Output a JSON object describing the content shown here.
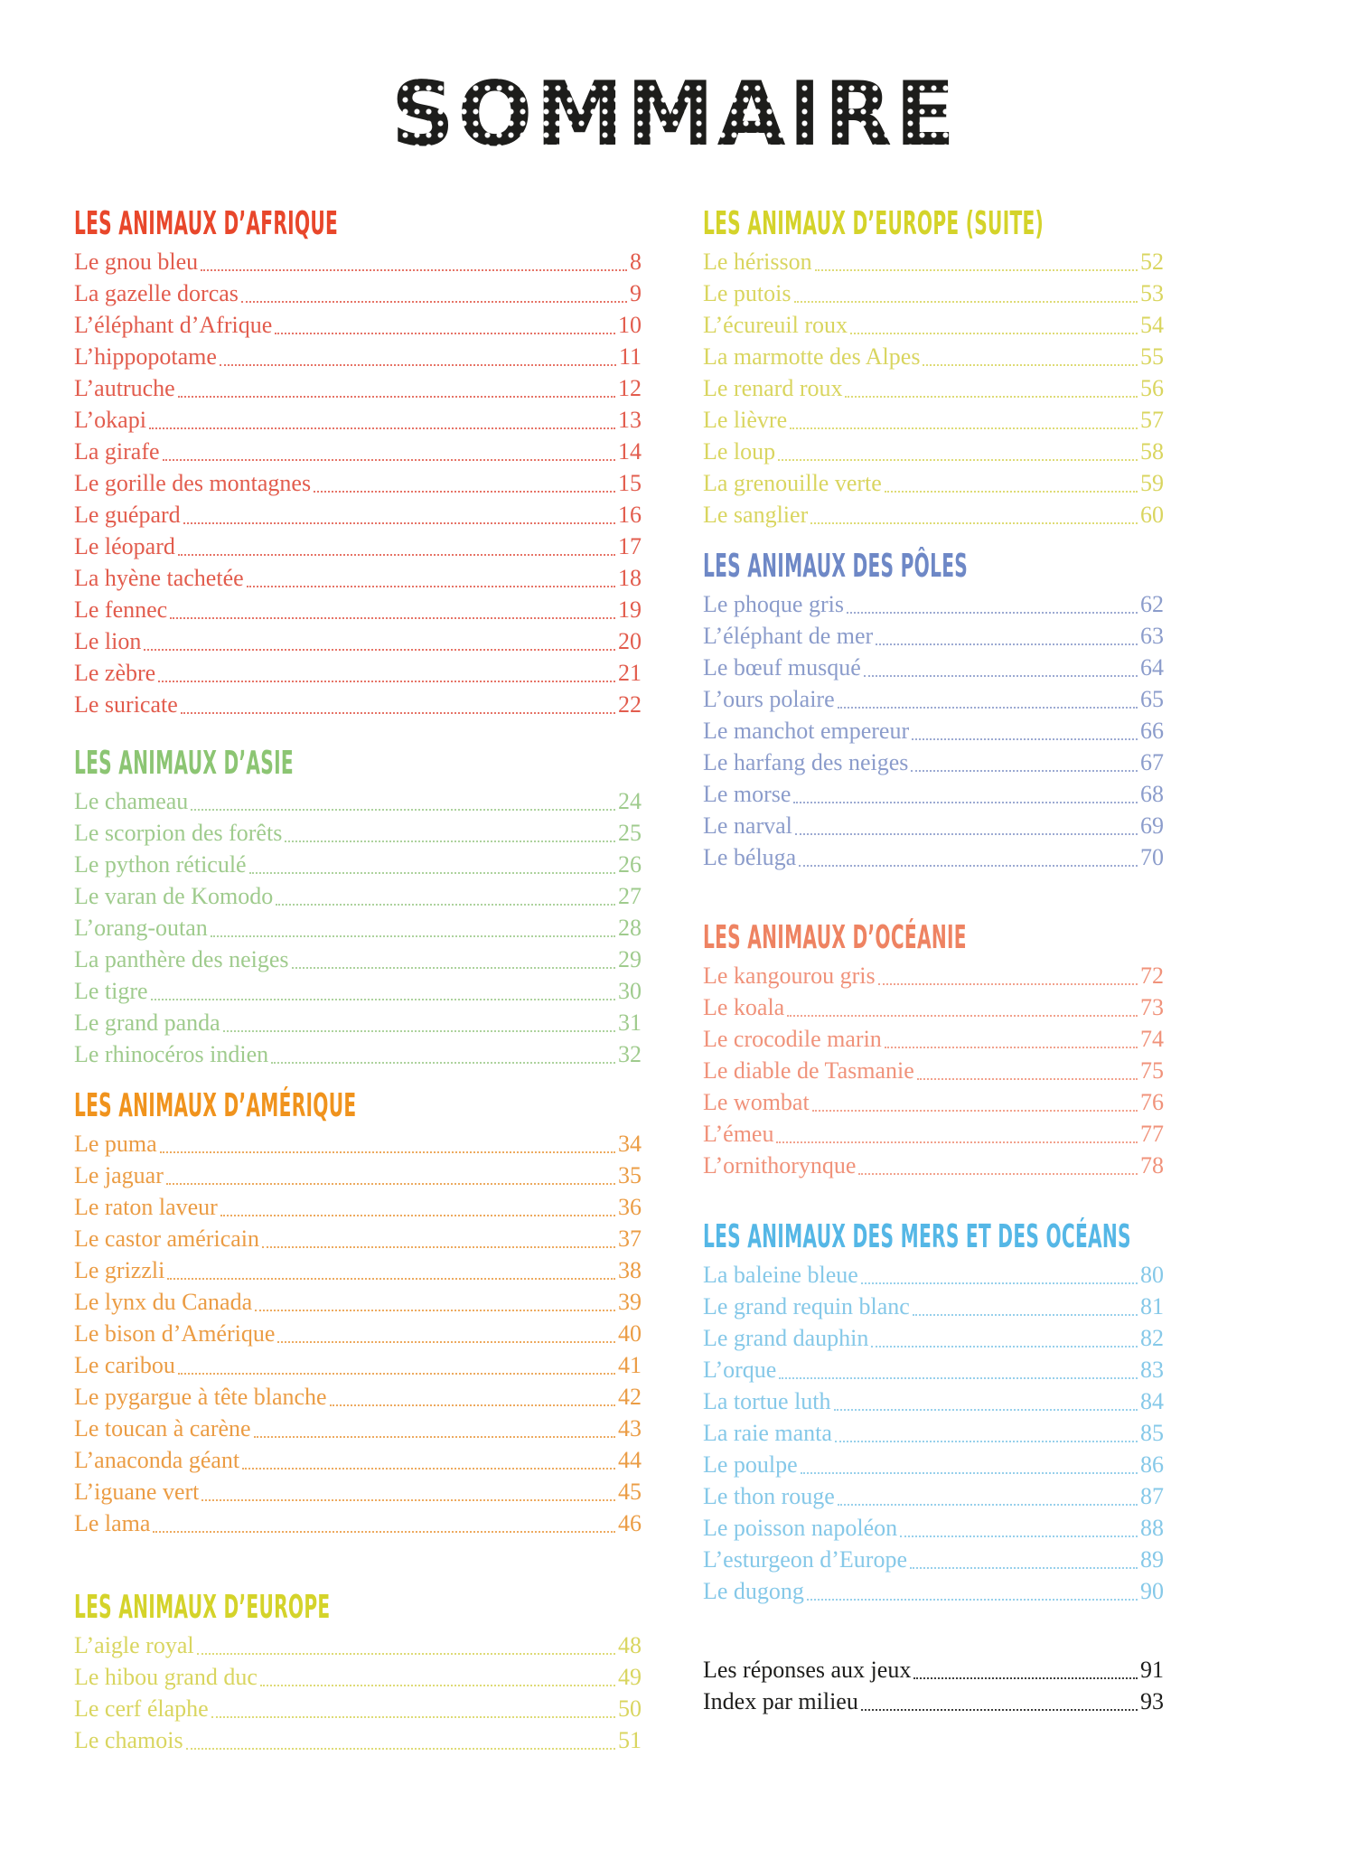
{
  "page": {
    "title": "SOMMAIRE",
    "title_color": "#1d1d1b",
    "background": "#ffffff"
  },
  "columns": [
    {
      "sections": [
        {
          "heading": "LES ANIMAUX D’AFRIQUE",
          "heading_color": "#e8472b",
          "entry_color": "#e25c4d",
          "entries": [
            {
              "label": "Le gnou bleu",
              "page": "8"
            },
            {
              "label": "La gazelle dorcas",
              "page": "9"
            },
            {
              "label": "L’éléphant d’Afrique",
              "page": "10"
            },
            {
              "label": "L’hippopotame",
              "page": "11"
            },
            {
              "label": "L’autruche",
              "page": "12"
            },
            {
              "label": "L’okapi",
              "page": "13"
            },
            {
              "label": "La girafe",
              "page": "14"
            },
            {
              "label": "Le gorille des montagnes",
              "page": "15"
            },
            {
              "label": "Le guépard",
              "page": "16"
            },
            {
              "label": "Le léopard",
              "page": "17"
            },
            {
              "label": "La hyène tachetée",
              "page": "18"
            },
            {
              "label": "Le fennec",
              "page": "19"
            },
            {
              "label": "Le lion",
              "page": "20"
            },
            {
              "label": "Le zèbre",
              "page": "21"
            },
            {
              "label": "Le suricate",
              "page": "22"
            }
          ]
        },
        {
          "heading": "LES ANIMAUX D’ASIE",
          "heading_color": "#8cc573",
          "entry_color": "#9fcb8d",
          "entries": [
            {
              "label": "Le chameau",
              "page": "24"
            },
            {
              "label": "Le scorpion des forêts",
              "page": "25"
            },
            {
              "label": "Le python réticulé",
              "page": "26"
            },
            {
              "label": "Le varan de Komodo",
              "page": "27"
            },
            {
              "label": "L’orang-outan",
              "page": "28"
            },
            {
              "label": "La panthère des neiges",
              "page": "29"
            },
            {
              "label": "Le tigre",
              "page": "30"
            },
            {
              "label": "Le grand panda",
              "page": "31"
            },
            {
              "label": "Le rhinocéros indien",
              "page": "32"
            }
          ]
        },
        {
          "heading": "LES ANIMAUX D’AMÉRIQUE",
          "heading_color": "#f0931d",
          "entry_color": "#eb9c44",
          "entries": [
            {
              "label": "Le puma",
              "page": "34"
            },
            {
              "label": "Le jaguar",
              "page": "35"
            },
            {
              "label": "Le raton laveur",
              "page": "36"
            },
            {
              "label": "Le castor américain",
              "page": "37"
            },
            {
              "label": "Le grizzli",
              "page": "38"
            },
            {
              "label": "Le lynx du Canada",
              "page": "39"
            },
            {
              "label": "Le bison d’Amérique",
              "page": "40"
            },
            {
              "label": "Le caribou",
              "page": "41"
            },
            {
              "label": "Le pygargue à tête blanche",
              "page": "42"
            },
            {
              "label": "Le toucan à carène",
              "page": "43"
            },
            {
              "label": "L’anaconda géant",
              "page": "44"
            },
            {
              "label": "L’iguane vert",
              "page": "45"
            },
            {
              "label": "Le lama",
              "page": "46"
            }
          ]
        },
        {
          "heading": "LES ANIMAUX D’EUROPE",
          "heading_color": "#d4d32a",
          "entry_color": "#d9d55f",
          "entries": [
            {
              "label": "L’aigle royal",
              "page": "48"
            },
            {
              "label": "Le hibou grand duc",
              "page": "49"
            },
            {
              "label": "Le cerf élaphe",
              "page": "50"
            },
            {
              "label": "Le chamois",
              "page": "51"
            }
          ]
        }
      ]
    },
    {
      "sections": [
        {
          "heading": "LES ANIMAUX D’EUROPE (SUITE)",
          "heading_color": "#d4d32a",
          "entry_color": "#d9d55f",
          "entries": [
            {
              "label": "Le hérisson",
              "page": "52"
            },
            {
              "label": "Le putois",
              "page": "53"
            },
            {
              "label": "L’écureuil roux",
              "page": "54"
            },
            {
              "label": "La marmotte des Alpes",
              "page": "55"
            },
            {
              "label": "Le renard roux",
              "page": "56"
            },
            {
              "label": "Le lièvre",
              "page": "57"
            },
            {
              "label": "Le loup",
              "page": "58"
            },
            {
              "label": "La grenouille verte",
              "page": "59"
            },
            {
              "label": "Le sanglier",
              "page": "60"
            }
          ]
        },
        {
          "heading": "LES ANIMAUX DES PÔLES",
          "heading_color": "#6e88c6",
          "entry_color": "#8b9ccb",
          "entries": [
            {
              "label": "Le phoque gris",
              "page": "62"
            },
            {
              "label": "L’éléphant de mer",
              "page": "63"
            },
            {
              "label": "Le bœuf musqué",
              "page": "64"
            },
            {
              "label": "L’ours polaire",
              "page": "65"
            },
            {
              "label": "Le manchot empereur",
              "page": "66"
            },
            {
              "label": "Le harfang des neiges",
              "page": "67"
            },
            {
              "label": "Le morse",
              "page": "68"
            },
            {
              "label": "Le narval",
              "page": "69"
            },
            {
              "label": "Le béluga",
              "page": "70"
            }
          ]
        },
        {
          "heading": "LES ANIMAUX D’OCÉANIE",
          "heading_color": "#ee8362",
          "entry_color": "#f0927a",
          "entries": [
            {
              "label": "Le kangourou gris",
              "page": "72"
            },
            {
              "label": "Le koala",
              "page": "73"
            },
            {
              "label": "Le crocodile marin",
              "page": "74"
            },
            {
              "label": "Le diable de Tasmanie",
              "page": "75"
            },
            {
              "label": "Le wombat",
              "page": "76"
            },
            {
              "label": "L’émeu",
              "page": "77"
            },
            {
              "label": "L’ornithorynque",
              "page": "78"
            }
          ]
        },
        {
          "heading": "LES ANIMAUX DES MERS ET DES OCÉANS",
          "heading_color": "#55b7e6",
          "entry_color": "#85c8e8",
          "entries": [
            {
              "label": "La baleine bleue",
              "page": "80"
            },
            {
              "label": "Le grand requin blanc",
              "page": "81"
            },
            {
              "label": "Le grand dauphin",
              "page": "82"
            },
            {
              "label": "L’orque",
              "page": "83"
            },
            {
              "label": "La tortue luth",
              "page": "84"
            },
            {
              "label": "La raie manta",
              "page": "85"
            },
            {
              "label": "Le poulpe",
              "page": "86"
            },
            {
              "label": "Le thon rouge",
              "page": "87"
            },
            {
              "label": "Le poisson napoléon",
              "page": "88"
            },
            {
              "label": "L’esturgeon d’Europe",
              "page": "89"
            },
            {
              "label": "Le dugong",
              "page": "90"
            }
          ]
        },
        {
          "heading": null,
          "heading_color": "#1d1d1b",
          "entry_color": "#1d1d1b",
          "entries": [
            {
              "label": "Les réponses aux jeux",
              "page": "91"
            },
            {
              "label": "Index par milieu",
              "page": "93"
            }
          ]
        }
      ]
    }
  ]
}
